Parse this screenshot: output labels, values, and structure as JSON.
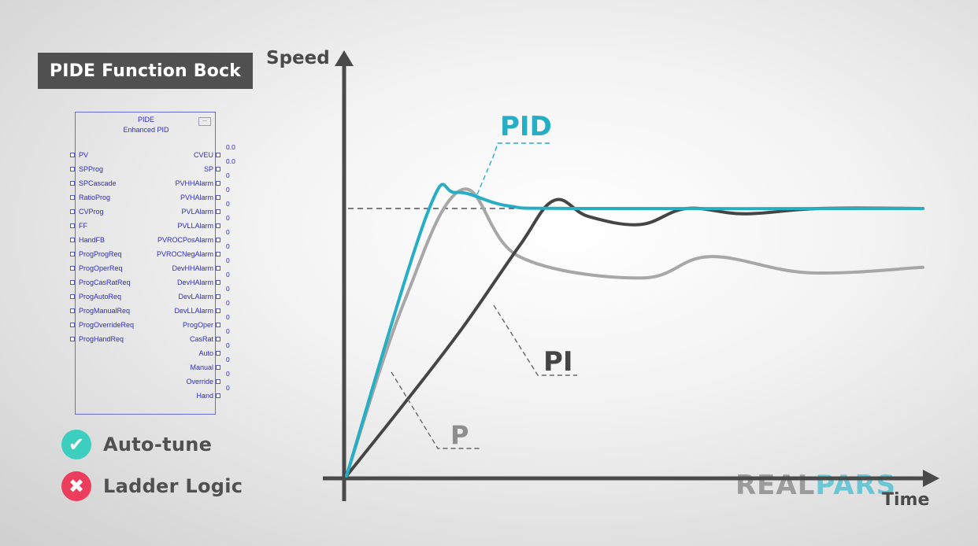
{
  "title": "PIDE Function Bock",
  "block": {
    "name": "PIDE",
    "description": "Enhanced PID",
    "menu_glyph": "...",
    "inputs": [
      "PV",
      "SPProg",
      "SPCascade",
      "RatioProg",
      "CVProg",
      "FF",
      "HandFB",
      "ProgProgReq",
      "ProgOperReq",
      "ProgCasRatReq",
      "ProgAutoReq",
      "ProgManualReq",
      "ProgOverrideReq",
      "ProgHandReq"
    ],
    "outputs": [
      "CVEU",
      "SP",
      "PVHHAlarm",
      "PVHAlarm",
      "PVLAlarm",
      "PVLLAlarm",
      "PVROCPosAlarm",
      "PVROCNegAlarm",
      "DevHHAlarm",
      "DevHAlarm",
      "DevLAlarm",
      "DevLLAlarm",
      "ProgOper",
      "CasRat",
      "Auto",
      "Manual",
      "Override",
      "Hand"
    ],
    "output_values": [
      "0.0",
      "0.0",
      "0",
      "0",
      "0",
      "0",
      "0",
      "0",
      "0",
      "0",
      "0",
      "0",
      "0",
      "0",
      "0",
      "0",
      "0",
      "0"
    ]
  },
  "features": [
    {
      "label": "Auto-tune",
      "status": "check",
      "color": "#3ccfc0",
      "glyph": "✔"
    },
    {
      "label": "Ladder Logic",
      "status": "cross",
      "color": "#ec3d5c",
      "glyph": "✖"
    }
  ],
  "chart_data": {
    "type": "line",
    "xlabel": "Time",
    "ylabel": "Speed",
    "setpoint": 1.0,
    "series": [
      {
        "name": "PID",
        "color": "#26aec4",
        "points": [
          [
            0,
            0
          ],
          [
            0.14,
            0.98
          ],
          [
            0.19,
            1.06
          ],
          [
            0.28,
            1.01
          ],
          [
            0.4,
            1.0
          ],
          [
            1.0,
            1.0
          ]
        ]
      },
      {
        "name": "PI",
        "color": "#454545",
        "points": [
          [
            0,
            0
          ],
          [
            0.1,
            0.27
          ],
          [
            0.2,
            0.55
          ],
          [
            0.3,
            0.86
          ],
          [
            0.36,
            1.03
          ],
          [
            0.42,
            0.97
          ],
          [
            0.51,
            0.94
          ],
          [
            0.59,
            1.0
          ],
          [
            0.69,
            0.98
          ],
          [
            0.82,
            1.0
          ],
          [
            1.0,
            1.0
          ]
        ]
      },
      {
        "name": "P",
        "color": "#a7a7a7",
        "points": [
          [
            0,
            0
          ],
          [
            0.1,
            0.65
          ],
          [
            0.2,
            1.07
          ],
          [
            0.3,
            0.82
          ],
          [
            0.51,
            0.74
          ],
          [
            0.63,
            0.82
          ],
          [
            0.8,
            0.76
          ],
          [
            1.0,
            0.78
          ]
        ]
      }
    ],
    "watermark": "REALPARS"
  }
}
